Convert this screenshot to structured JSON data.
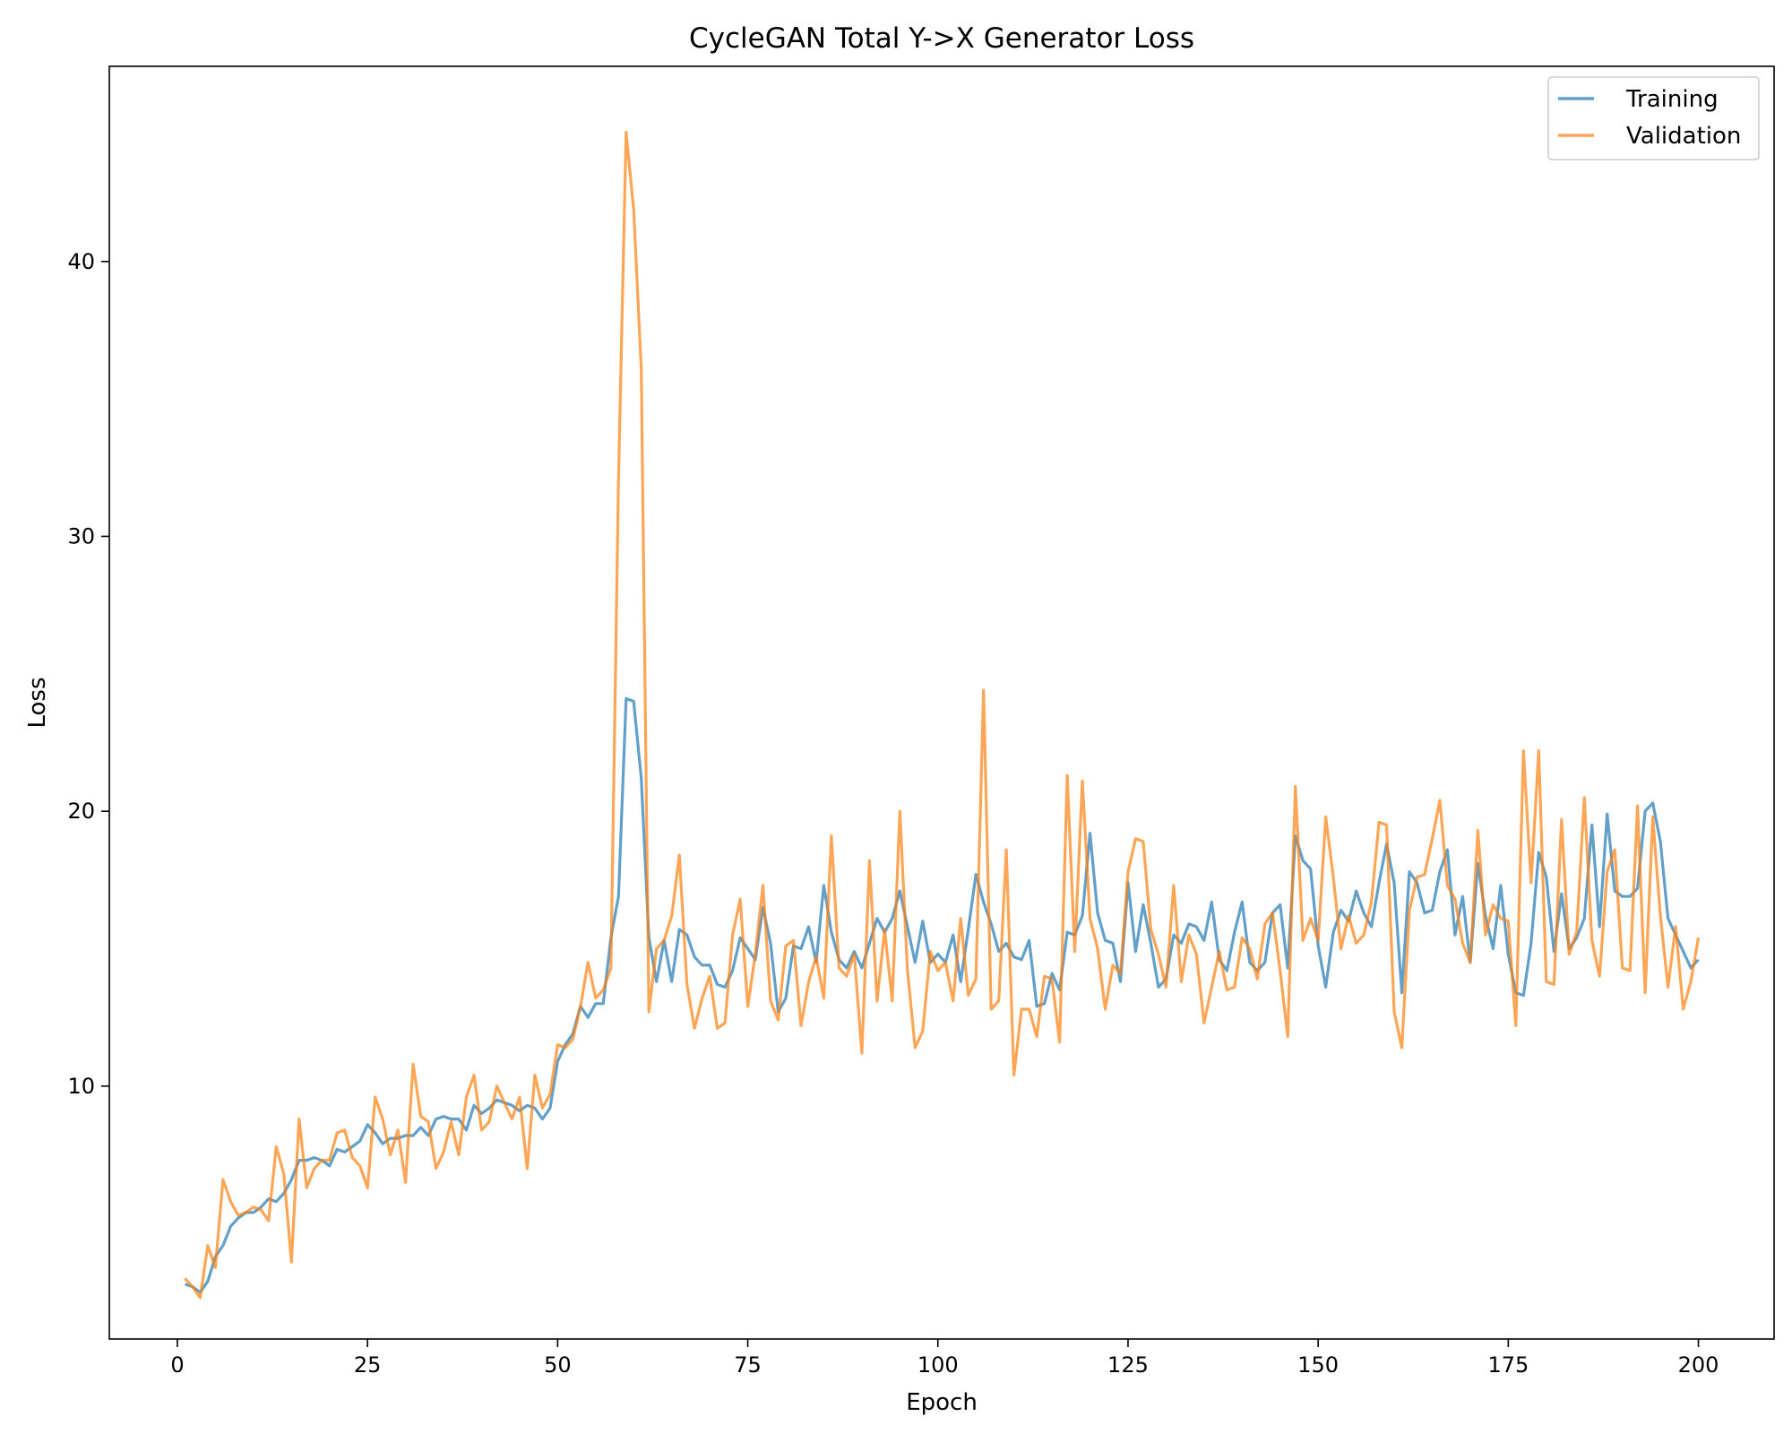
{
  "chart_data": {
    "type": "line",
    "title": "CycleGAN Total Y->X Generator Loss",
    "xlabel": "Epoch",
    "ylabel": "Loss",
    "xlim": [
      -8.95,
      209.95
    ],
    "ylim": [
      0.8,
      47.1
    ],
    "xticks": [
      0,
      25,
      50,
      75,
      100,
      125,
      150,
      175,
      200
    ],
    "yticks": [
      10,
      20,
      30,
      40
    ],
    "grid": false,
    "legend_position": "upper-right",
    "series": [
      {
        "name": "Training",
        "color": "#1f77b4",
        "x_start": 1,
        "values": [
          2.8,
          2.7,
          2.5,
          2.9,
          3.8,
          4.2,
          4.9,
          5.2,
          5.4,
          5.4,
          5.6,
          5.9,
          5.8,
          6.1,
          6.6,
          7.3,
          7.3,
          7.4,
          7.3,
          7.1,
          7.7,
          7.6,
          7.8,
          8.0,
          8.6,
          8.3,
          7.9,
          8.1,
          8.1,
          8.2,
          8.2,
          8.5,
          8.2,
          8.8,
          8.9,
          8.8,
          8.8,
          8.4,
          9.3,
          9.0,
          9.2,
          9.5,
          9.4,
          9.3,
          9.1,
          9.3,
          9.2,
          8.8,
          9.2,
          10.9,
          11.5,
          11.9,
          12.9,
          12.5,
          13.0,
          13.0,
          15.4,
          16.9,
          24.1,
          24.0,
          21.2,
          15.4,
          13.8,
          15.3,
          13.8,
          15.7,
          15.5,
          14.7,
          14.4,
          14.4,
          13.7,
          13.6,
          14.2,
          15.4,
          15.0,
          14.6,
          16.5,
          15.2,
          12.7,
          13.2,
          15.1,
          15.0,
          15.8,
          14.5,
          17.3,
          15.6,
          14.6,
          14.3,
          14.9,
          14.3,
          15.2,
          16.1,
          15.6,
          16.1,
          17.1,
          15.8,
          14.5,
          16.0,
          14.5,
          14.8,
          14.5,
          15.5,
          13.8,
          15.7,
          17.7,
          16.7,
          15.9,
          14.9,
          15.2,
          14.7,
          14.6,
          15.3,
          12.9,
          13.0,
          14.1,
          13.5,
          15.6,
          15.5,
          16.2,
          19.2,
          16.3,
          15.3,
          15.2,
          13.8,
          17.4,
          14.9,
          16.6,
          15.2,
          13.6,
          13.9,
          15.5,
          15.2,
          15.9,
          15.8,
          15.3,
          16.7,
          14.6,
          14.2,
          15.6,
          16.7,
          14.5,
          14.2,
          14.5,
          16.3,
          16.6,
          14.3,
          19.1,
          18.2,
          17.9,
          15.1,
          13.6,
          15.6,
          16.4,
          16.0,
          17.1,
          16.3,
          15.8,
          17.4,
          18.8,
          17.4,
          13.4,
          17.8,
          17.4,
          16.3,
          16.4,
          17.8,
          18.6,
          15.5,
          16.9,
          14.5,
          18.1,
          16.2,
          15.0,
          17.3,
          14.8,
          13.4,
          13.3,
          15.2,
          18.5,
          17.6,
          14.9,
          17.0,
          15.0,
          15.4,
          16.1,
          19.5,
          15.8,
          19.9,
          17.1,
          16.9,
          16.9,
          17.2,
          20.0,
          20.3,
          18.9,
          16.1,
          15.5,
          14.9,
          14.3,
          14.6
        ]
      },
      {
        "name": "Validation",
        "color": "#ff7f0e",
        "x_start": 1,
        "values": [
          3.0,
          2.7,
          2.3,
          4.2,
          3.4,
          6.6,
          5.8,
          5.3,
          5.4,
          5.6,
          5.5,
          5.1,
          7.8,
          6.8,
          3.6,
          8.8,
          6.3,
          7.0,
          7.3,
          7.3,
          8.3,
          8.4,
          7.4,
          7.1,
          6.3,
          9.6,
          8.8,
          7.5,
          8.4,
          6.5,
          10.8,
          8.9,
          8.7,
          7.0,
          7.6,
          8.7,
          7.5,
          9.6,
          10.4,
          8.4,
          8.7,
          10.0,
          9.4,
          8.8,
          9.6,
          7.0,
          10.4,
          9.2,
          9.7,
          11.5,
          11.4,
          11.7,
          12.9,
          14.5,
          13.2,
          13.5,
          14.3,
          32.1,
          44.7,
          41.9,
          36.1,
          12.7,
          15.0,
          15.3,
          16.2,
          18.4,
          13.7,
          12.1,
          13.2,
          14.0,
          12.1,
          12.3,
          15.5,
          16.8,
          12.9,
          14.8,
          17.3,
          13.1,
          12.4,
          15.1,
          15.3,
          12.2,
          13.8,
          14.7,
          13.2,
          19.1,
          14.3,
          14.0,
          14.8,
          11.2,
          18.2,
          13.1,
          15.7,
          13.1,
          20.0,
          14.2,
          11.4,
          12.0,
          14.9,
          14.2,
          14.5,
          13.1,
          16.1,
          13.3,
          13.9,
          24.4,
          12.8,
          13.1,
          18.6,
          10.4,
          12.8,
          12.8,
          11.8,
          14.0,
          13.9,
          11.6,
          21.3,
          14.9,
          21.1,
          16.1,
          15.0,
          12.8,
          14.4,
          14.1,
          17.8,
          19.0,
          18.9,
          15.7,
          14.8,
          13.6,
          17.3,
          13.8,
          15.5,
          14.8,
          12.3,
          13.6,
          14.9,
          13.5,
          13.6,
          15.4,
          15.0,
          13.9,
          15.9,
          16.3,
          14.2,
          11.8,
          20.9,
          15.3,
          16.1,
          15.3,
          19.8,
          17.6,
          15.0,
          16.2,
          15.2,
          15.5,
          16.7,
          19.6,
          19.5,
          12.7,
          11.4,
          16.4,
          17.6,
          17.7,
          19.0,
          20.4,
          17.3,
          16.8,
          15.2,
          14.5,
          19.3,
          15.5,
          16.6,
          16.1,
          16.0,
          12.2,
          22.2,
          17.4,
          22.2,
          13.8,
          13.7,
          19.7,
          14.8,
          15.6,
          20.5,
          15.3,
          14.0,
          17.8,
          18.6,
          14.3,
          14.2,
          20.2,
          13.4,
          19.8,
          16.2,
          13.6,
          15.8,
          12.8,
          13.8,
          15.4
        ]
      }
    ]
  }
}
